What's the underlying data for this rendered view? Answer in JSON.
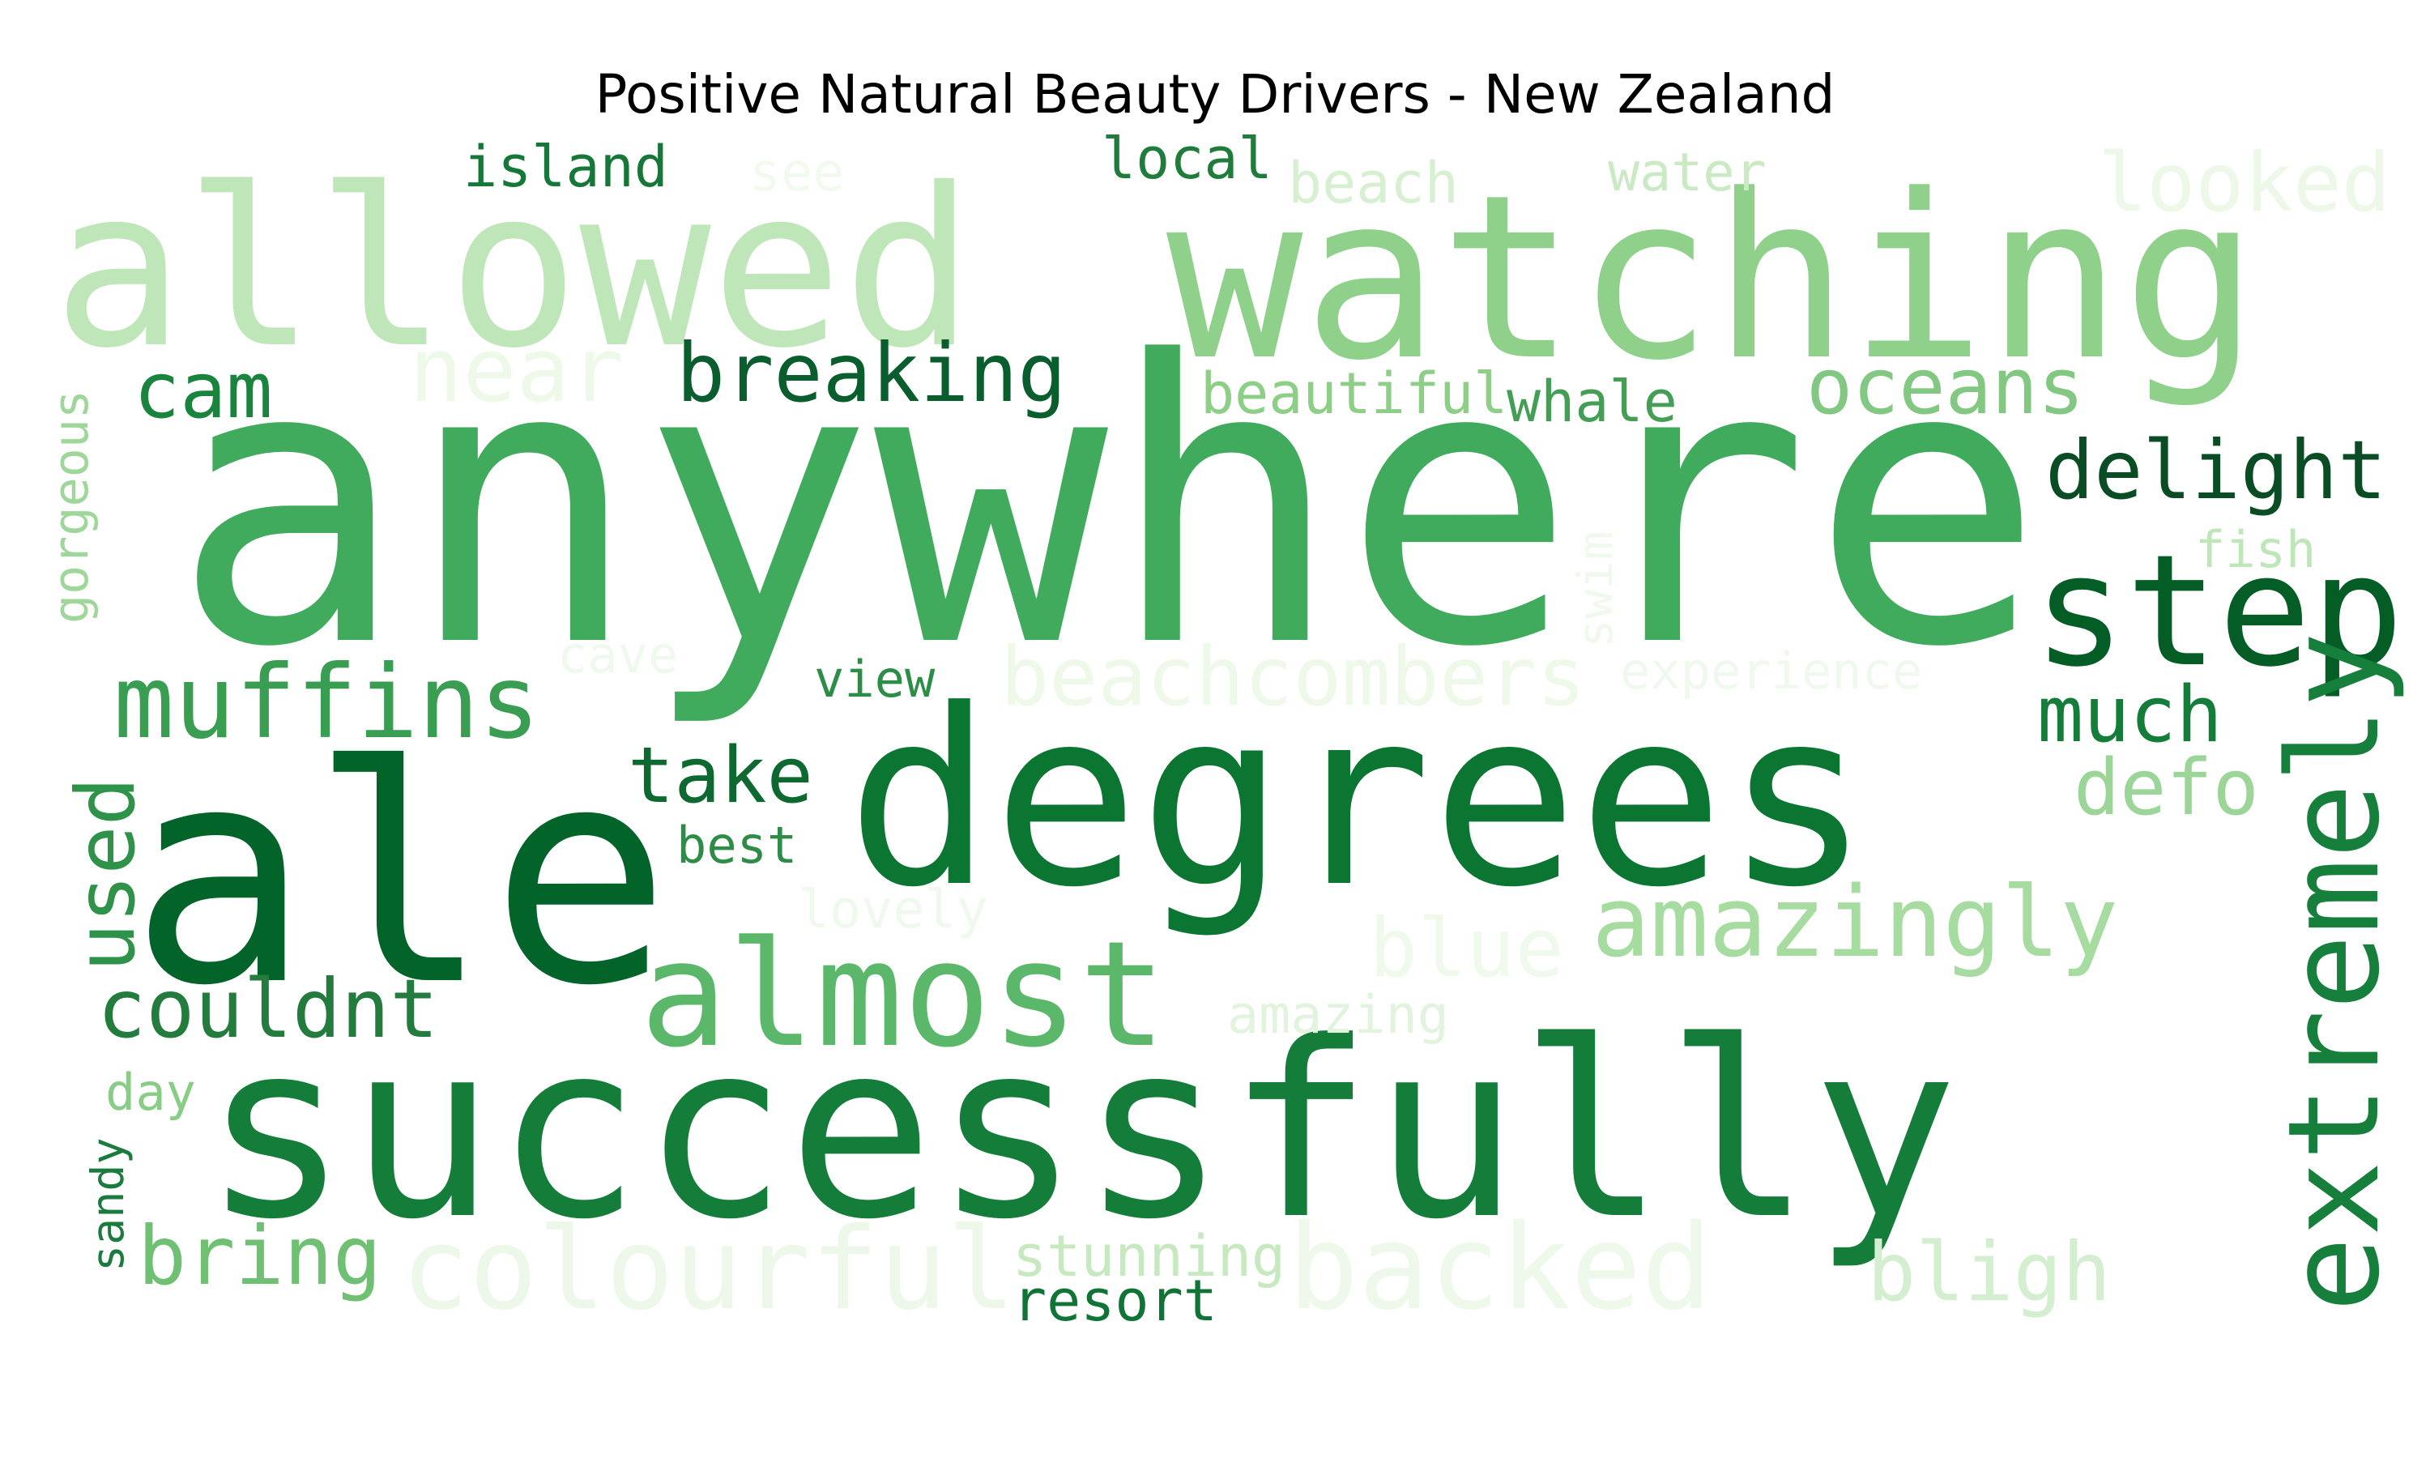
{
  "chart_data": {
    "type": "wordcloud",
    "title": "Positive Natural Beauty Drivers - New Zealand",
    "colormap": "Greens",
    "words": [
      {
        "text": "anywhere",
        "color": "#41ab5d"
      },
      {
        "text": "successfully",
        "color": "#137d39"
      },
      {
        "text": "degrees",
        "color": "#0b7631"
      },
      {
        "text": "allowed",
        "color": "#bfe6b8"
      },
      {
        "text": "watching",
        "color": "#8fd18a"
      },
      {
        "text": "ale",
        "color": "#036429"
      },
      {
        "text": "almost",
        "color": "#5bb86a"
      },
      {
        "text": "step",
        "color": "#045d25"
      },
      {
        "text": "extremely",
        "color": "#157f3b"
      },
      {
        "text": "muffins",
        "color": "#3a9e52"
      },
      {
        "text": "amazingly",
        "color": "#a7dca0"
      },
      {
        "text": "backed",
        "color": "#eef9ec"
      },
      {
        "text": "colourful",
        "color": "#edf8ea"
      },
      {
        "text": "breaking",
        "color": "#0a5d2c"
      },
      {
        "text": "beachcombers",
        "color": "#eef9ea"
      },
      {
        "text": "couldnt",
        "color": "#237b3e"
      },
      {
        "text": "delight",
        "color": "#0a4d25"
      },
      {
        "text": "near",
        "color": "#eef9ea"
      },
      {
        "text": "looked",
        "color": "#edf8e9"
      },
      {
        "text": "oceans",
        "color": "#82c882"
      },
      {
        "text": "bligh",
        "color": "#d4efcf"
      },
      {
        "text": "much",
        "color": "#137d39"
      },
      {
        "text": "defo",
        "color": "#9bd698"
      },
      {
        "text": "blue",
        "color": "#eff9ec"
      },
      {
        "text": "take",
        "color": "#0d6930"
      },
      {
        "text": "bring",
        "color": "#6fc072"
      },
      {
        "text": "used",
        "color": "#2e9249"
      },
      {
        "text": "cam",
        "color": "#1a843f"
      },
      {
        "text": "beautiful",
        "color": "#8dcf87"
      },
      {
        "text": "whale",
        "color": "#459e55"
      },
      {
        "text": "stunning",
        "color": "#c6e9bf"
      },
      {
        "text": "resort",
        "color": "#107437"
      },
      {
        "text": "island",
        "color": "#157839"
      },
      {
        "text": "local",
        "color": "#207c3b"
      },
      {
        "text": "beach",
        "color": "#d7f0d1"
      },
      {
        "text": "water",
        "color": "#c9eac2"
      },
      {
        "text": "see",
        "color": "#f2faef"
      },
      {
        "text": "gorgeous",
        "color": "#9fd69a"
      },
      {
        "text": "fish",
        "color": "#bfe6b8"
      },
      {
        "text": "swim",
        "color": "#f0f9ed"
      },
      {
        "text": "experience",
        "color": "#f0f9ed"
      },
      {
        "text": "cave",
        "color": "#f0f9ed"
      },
      {
        "text": "view",
        "color": "#2c8d47"
      },
      {
        "text": "best",
        "color": "#2d8d47"
      },
      {
        "text": "lovely",
        "color": "#f0f9ed"
      },
      {
        "text": "amazing",
        "color": "#e3f4de"
      },
      {
        "text": "day",
        "color": "#89cc85"
      },
      {
        "text": "sandy",
        "color": "#1b7a3d"
      }
    ]
  }
}
